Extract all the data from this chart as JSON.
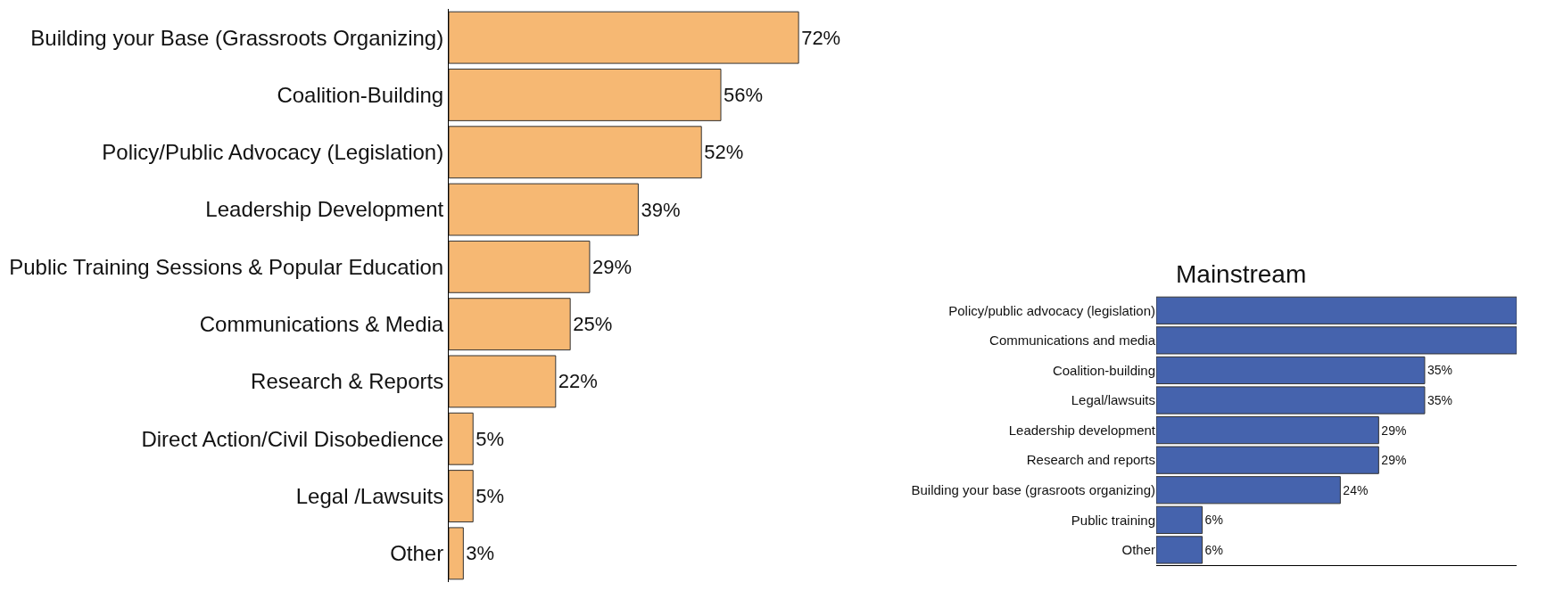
{
  "chart_data": [
    {
      "type": "bar",
      "orientation": "horizontal",
      "categories": [
        "Building your Base (Grassroots Organizing)",
        "Coalition-Building",
        "Policy/Public Advocacy (Legislation)",
        "Leadership Development",
        "Public Training Sessions & Popular Education",
        "Communications & Media",
        "Research & Reports",
        "Direct Action/Civil Disobedience",
        "Legal /Lawsuits",
        "Other"
      ],
      "values": [
        72,
        56,
        52,
        39,
        29,
        25,
        22,
        5,
        5,
        3
      ],
      "value_labels": [
        "72%",
        "56%",
        "52%",
        "39%",
        "29%",
        "25%",
        "22%",
        "5%",
        "5%",
        "3%"
      ],
      "color": "#f6b873",
      "tick_labels": "y"
    },
    {
      "type": "bar",
      "orientation": "horizontal",
      "title": "Mainstream",
      "categories": [
        "Policy/public advocacy (legislation)",
        "Communications and media",
        "Coalition-building",
        "Legal/lawsuits",
        "Leadership development",
        "Research and reports",
        "Building your base (grasroots organizing)",
        "Public training",
        "Other"
      ],
      "values": [
        47,
        47,
        35,
        35,
        29,
        29,
        24,
        6,
        6
      ],
      "value_labels": [
        null,
        null,
        "35%",
        "35%",
        "29%",
        "29%",
        "24%",
        "6%",
        "6%"
      ],
      "color": "#4563ad",
      "tick_labels": "y"
    }
  ]
}
